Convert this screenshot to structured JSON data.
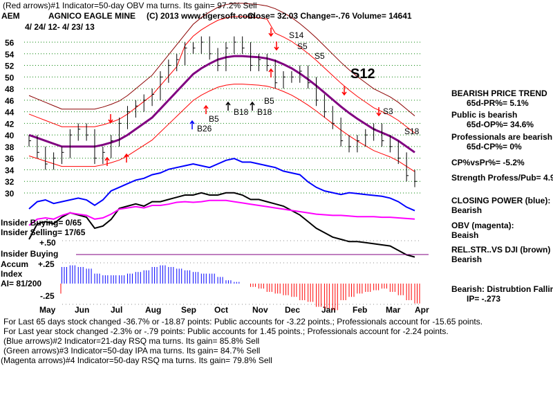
{
  "header": {
    "indicator1": "(Red arrows)#1 Indicator=50-day OBV ma turns. Its gain= 97.2% Sell",
    "symbol": "AEM",
    "company": "AGNICO EAGLE MINE",
    "copyright": "(C) 2013 www.tigersoft.com",
    "quote": "Close=  32.03  Change=-.76 Volume= 14641",
    "date_range": "4/ 24/ 12- 4/ 23/ 13"
  },
  "side_panel": {
    "trend": "BEARISH PRICE TREND",
    "pr": "65d-PR%= 5.1%",
    "public": "Public is bearish",
    "op": "65d-OP%= 34.6%",
    "pros": "Professionals are bearish",
    "cp": "65d-CP%= 0%",
    "cpvspr": "CP%vsPr%= -5.2%",
    "strength": "Strength Profess/Pub= 4.9",
    "closing_power": "CLOSING POWER (blue):",
    "closing_power_val": "Bearish",
    "obv": "OBV (magenta):",
    "obv_val": "Beaish",
    "relstr": "REL.STR..VS DJI (brown)",
    "relstr_val": "Bearish",
    "distribution": "Bearish: Distrubtion Falling",
    "ip": "IP= -.273"
  },
  "left_panel": {
    "insider_buying": "Insider Buying= 0/65",
    "insider_selling": "Insider Selling= 17/65",
    "plus50": "+.50",
    "insider_buying_label": "Insider Buying",
    "accum": "Accum",
    "plus25": "+.25",
    "index": "Index",
    "ai": "AI= 81/200",
    "minus25": "-.25"
  },
  "footer": {
    "line1": "For Last 65 days stock changed -36.7% or -18.87 points:  Public accounts for -3.22 points.;  Professionals account for -15.65 points.",
    "line2": "For Last year stock changed -2.3% or -.79 points:  Public accounts for  1.45 points.;  Professionals account for -2.24 points.",
    "line3": "(Blue arrows)#2 Indicator=21-day RSQ ma turns. Its gain= 85.8% Sell",
    "line4": "(Green arrows)#3 Indicator=50-day IPA ma turns. Its gain= 84.7% Sell",
    "line5": "(Magenta arrows)#4 Indicator=50-day RSQ ma turns. Its gain= 79.8% Sell"
  },
  "signals": {
    "s14": "S14",
    "s5a": "S5",
    "s5b": "S5",
    "s12": "S12",
    "s3": "S3",
    "s18": "S18",
    "b26": "B26",
    "b5a": "B5",
    "b18a": "B18",
    "b18b": "B18",
    "b5b": "B5"
  },
  "colors": {
    "price": "#000000",
    "bands": "#ff0000",
    "outer_band": "#8b0000",
    "ma": "#800080",
    "closing_power": "#0000ff",
    "obv": "#ff00ff",
    "relstr": "#000000",
    "accum_pos": "#0000ff",
    "accum_neg": "#ff0000",
    "grid": "#008000"
  },
  "chart_data": {
    "type": "line",
    "title": "AGNICO EAGLE MINE (AEM) 4/24/12 - 4/23/13",
    "ylim": [
      30,
      56
    ],
    "yticks": [
      56,
      54,
      52,
      50,
      48,
      46,
      44,
      42,
      40,
      38,
      36,
      34,
      32,
      30
    ],
    "xticks": [
      "May",
      "Jun",
      "Jul",
      "Aug",
      "Sep",
      "Oct",
      "Nov",
      "Dec",
      "Jan",
      "Feb",
      "Mar",
      "Apr"
    ],
    "price_weekly_close": [
      39,
      37,
      35,
      36,
      37,
      40,
      41,
      40,
      36,
      37,
      39,
      42,
      44,
      45,
      46,
      47,
      50,
      52,
      53,
      55,
      55,
      56,
      54,
      52,
      55,
      56,
      55,
      52,
      53,
      52,
      49,
      50,
      50,
      51,
      49,
      46,
      44,
      42,
      39,
      38,
      39,
      40,
      41,
      39,
      38,
      36,
      33,
      32
    ],
    "ma50": [
      40,
      39.5,
      39,
      38.5,
      38,
      38,
      38,
      38,
      38,
      38.3,
      38.7,
      39.2,
      40,
      41,
      42,
      43,
      44.5,
      46,
      47.5,
      49,
      50.5,
      51.5,
      52.3,
      53,
      53.4,
      53.6,
      53.6,
      53.5,
      53.4,
      53.2,
      52.8,
      52.2,
      51.5,
      50.6,
      49.6,
      48.5,
      47.3,
      46.1,
      44.9,
      43.8,
      42.8,
      41.9,
      41,
      40.4,
      39.8,
      39,
      38,
      37
    ],
    "closing_power": [
      10,
      18,
      20,
      16,
      18,
      20,
      22,
      20,
      14,
      20,
      30,
      34,
      38,
      42,
      44,
      48,
      50,
      54,
      56,
      58,
      60,
      58,
      56,
      60,
      64,
      66,
      62,
      62,
      60,
      58,
      56,
      52,
      50,
      48,
      40,
      34,
      30,
      28,
      26,
      28,
      27,
      26,
      25,
      24,
      22,
      18,
      12,
      8
    ],
    "obv": [
      18,
      28,
      30,
      28,
      34,
      38,
      36,
      34,
      28,
      30,
      36,
      44,
      46,
      48,
      46,
      50,
      50,
      52,
      55,
      56,
      55,
      56,
      58,
      58,
      58,
      56,
      54,
      52,
      50,
      48,
      46,
      44,
      42,
      40,
      38,
      36,
      35,
      34,
      34,
      33,
      32,
      32,
      32,
      31,
      31,
      30,
      29,
      28
    ],
    "rel_strength": [
      20,
      34,
      36,
      34,
      40,
      44,
      42,
      40,
      30,
      32,
      38,
      48,
      50,
      52,
      50,
      54,
      54,
      56,
      58,
      60,
      60,
      62,
      60,
      60,
      62,
      62,
      60,
      56,
      56,
      54,
      52,
      50,
      46,
      42,
      36,
      30,
      26,
      22,
      20,
      18,
      18,
      17,
      16,
      15,
      14,
      10,
      6,
      4
    ],
    "accum_index": [
      -0.05,
      -0.12,
      -0.1,
      -0.06,
      0.2,
      0.22,
      0.2,
      0.18,
      0.12,
      0.1,
      0.1,
      0.1,
      0.12,
      0.14,
      0.16,
      0.2,
      0.22,
      0.2,
      0.18,
      0.16,
      0.14,
      0.12,
      0.12,
      0.08,
      0.04,
      0.02,
      0,
      -0.04,
      -0.06,
      -0.1,
      -0.12,
      -0.14,
      -0.16,
      -0.2,
      -0.22,
      -0.28,
      -0.3,
      -0.32,
      -0.2,
      -0.16,
      -0.12,
      -0.1,
      -0.08,
      -0.06,
      -0.1,
      -0.14,
      -0.2,
      -0.24
    ]
  }
}
